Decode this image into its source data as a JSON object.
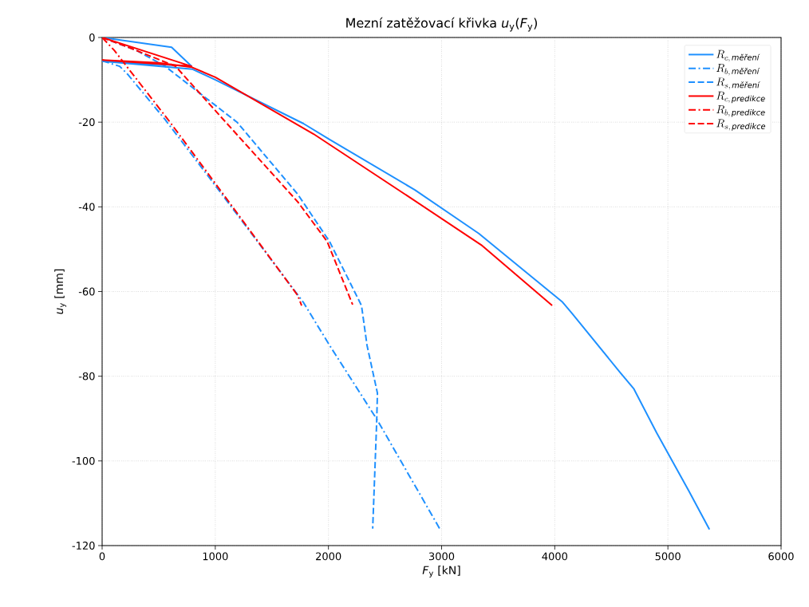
{
  "chart_data": {
    "type": "line",
    "title": "Mezní zatěžovací křivka *u*$_{y}$(*F*$_{y}$)",
    "xlabel": "*F*$_{y}$ [kN]",
    "ylabel": "*u*$_{y}$ [mm]",
    "xlim": [
      0,
      6000
    ],
    "ylim": [
      -120,
      0
    ],
    "xticks": [
      0,
      1000,
      2000,
      3000,
      4000,
      5000,
      6000
    ],
    "yticks": [
      -120,
      -100,
      -80,
      -60,
      -40,
      -20,
      0
    ],
    "grid": true,
    "legend": "top right",
    "series": [
      {
        "name": "R_{c,\\,\\textit{měření}}",
        "color": "#1e90ff",
        "line_style": "solid",
        "x": [
          0,
          614,
          790,
          0,
          800,
          1001,
          1777,
          2010,
          2764,
          3329,
          3561,
          4069,
          4154,
          4577,
          4697,
          4901,
          5183,
          5367
        ],
        "values": [
          0,
          -2.3,
          -6.8,
          -5.6,
          -7.5,
          -10,
          -20.3,
          -24.1,
          -36,
          -46.3,
          -51.4,
          -62.5,
          -65.2,
          -79.1,
          -82.9,
          -93.4,
          -107,
          -116.2
        ]
      },
      {
        "name": "R_{b,\\,\\textit{měření}}",
        "color": "#1e90ff",
        "line_style": "dashdot",
        "x": [
          0,
          155,
          226,
          557,
          1001,
          1777,
          2010,
          2433,
          2983
        ],
        "values": [
          -5.5,
          -6.8,
          -8.7,
          -19.4,
          -35,
          -62.5,
          -72.7,
          -90.4,
          -116
        ]
      },
      {
        "name": "R_{s,\\,\\textit{měření}}",
        "color": "#1e90ff",
        "line_style": "dashed",
        "x": [
          0,
          300,
          557,
          1192,
          1728,
          2010,
          2292,
          2341,
          2433,
          2426,
          2391
        ],
        "values": [
          0,
          -3,
          -6.8,
          -20,
          -37,
          -48.2,
          -63.3,
          -72.7,
          -84,
          -91,
          -116
        ]
      },
      {
        "name": "R_{c,\\,\\textit{predikce}}",
        "color": "#ff0000",
        "line_style": "solid",
        "x": [
          0,
          790,
          0,
          500,
          790,
          1001,
          1869,
          2715,
          3350,
          3977
        ],
        "values": [
          0,
          -6.8,
          -5.3,
          -6,
          -7,
          -9.4,
          -22.8,
          -37.7,
          -49,
          -63.3
        ]
      },
      {
        "name": "R_{b,\\,\\textit{predikce}}",
        "color": "#ff0000",
        "line_style": "dashdot",
        "x": [
          0,
          106,
          600,
          1001,
          1728,
          1763
        ],
        "values": [
          0,
          -3,
          -20,
          -34.5,
          -60.9,
          -63.3
        ]
      },
      {
        "name": "R_{s,\\,\\textit{predikce}}",
        "color": "#ff0000",
        "line_style": "dashed",
        "x": [
          0,
          250,
          649,
          1072,
          1728,
          1989,
          2214
        ],
        "values": [
          0,
          -2.5,
          -6.8,
          -19.4,
          -38.8,
          -48.2,
          -63.1
        ]
      }
    ]
  }
}
